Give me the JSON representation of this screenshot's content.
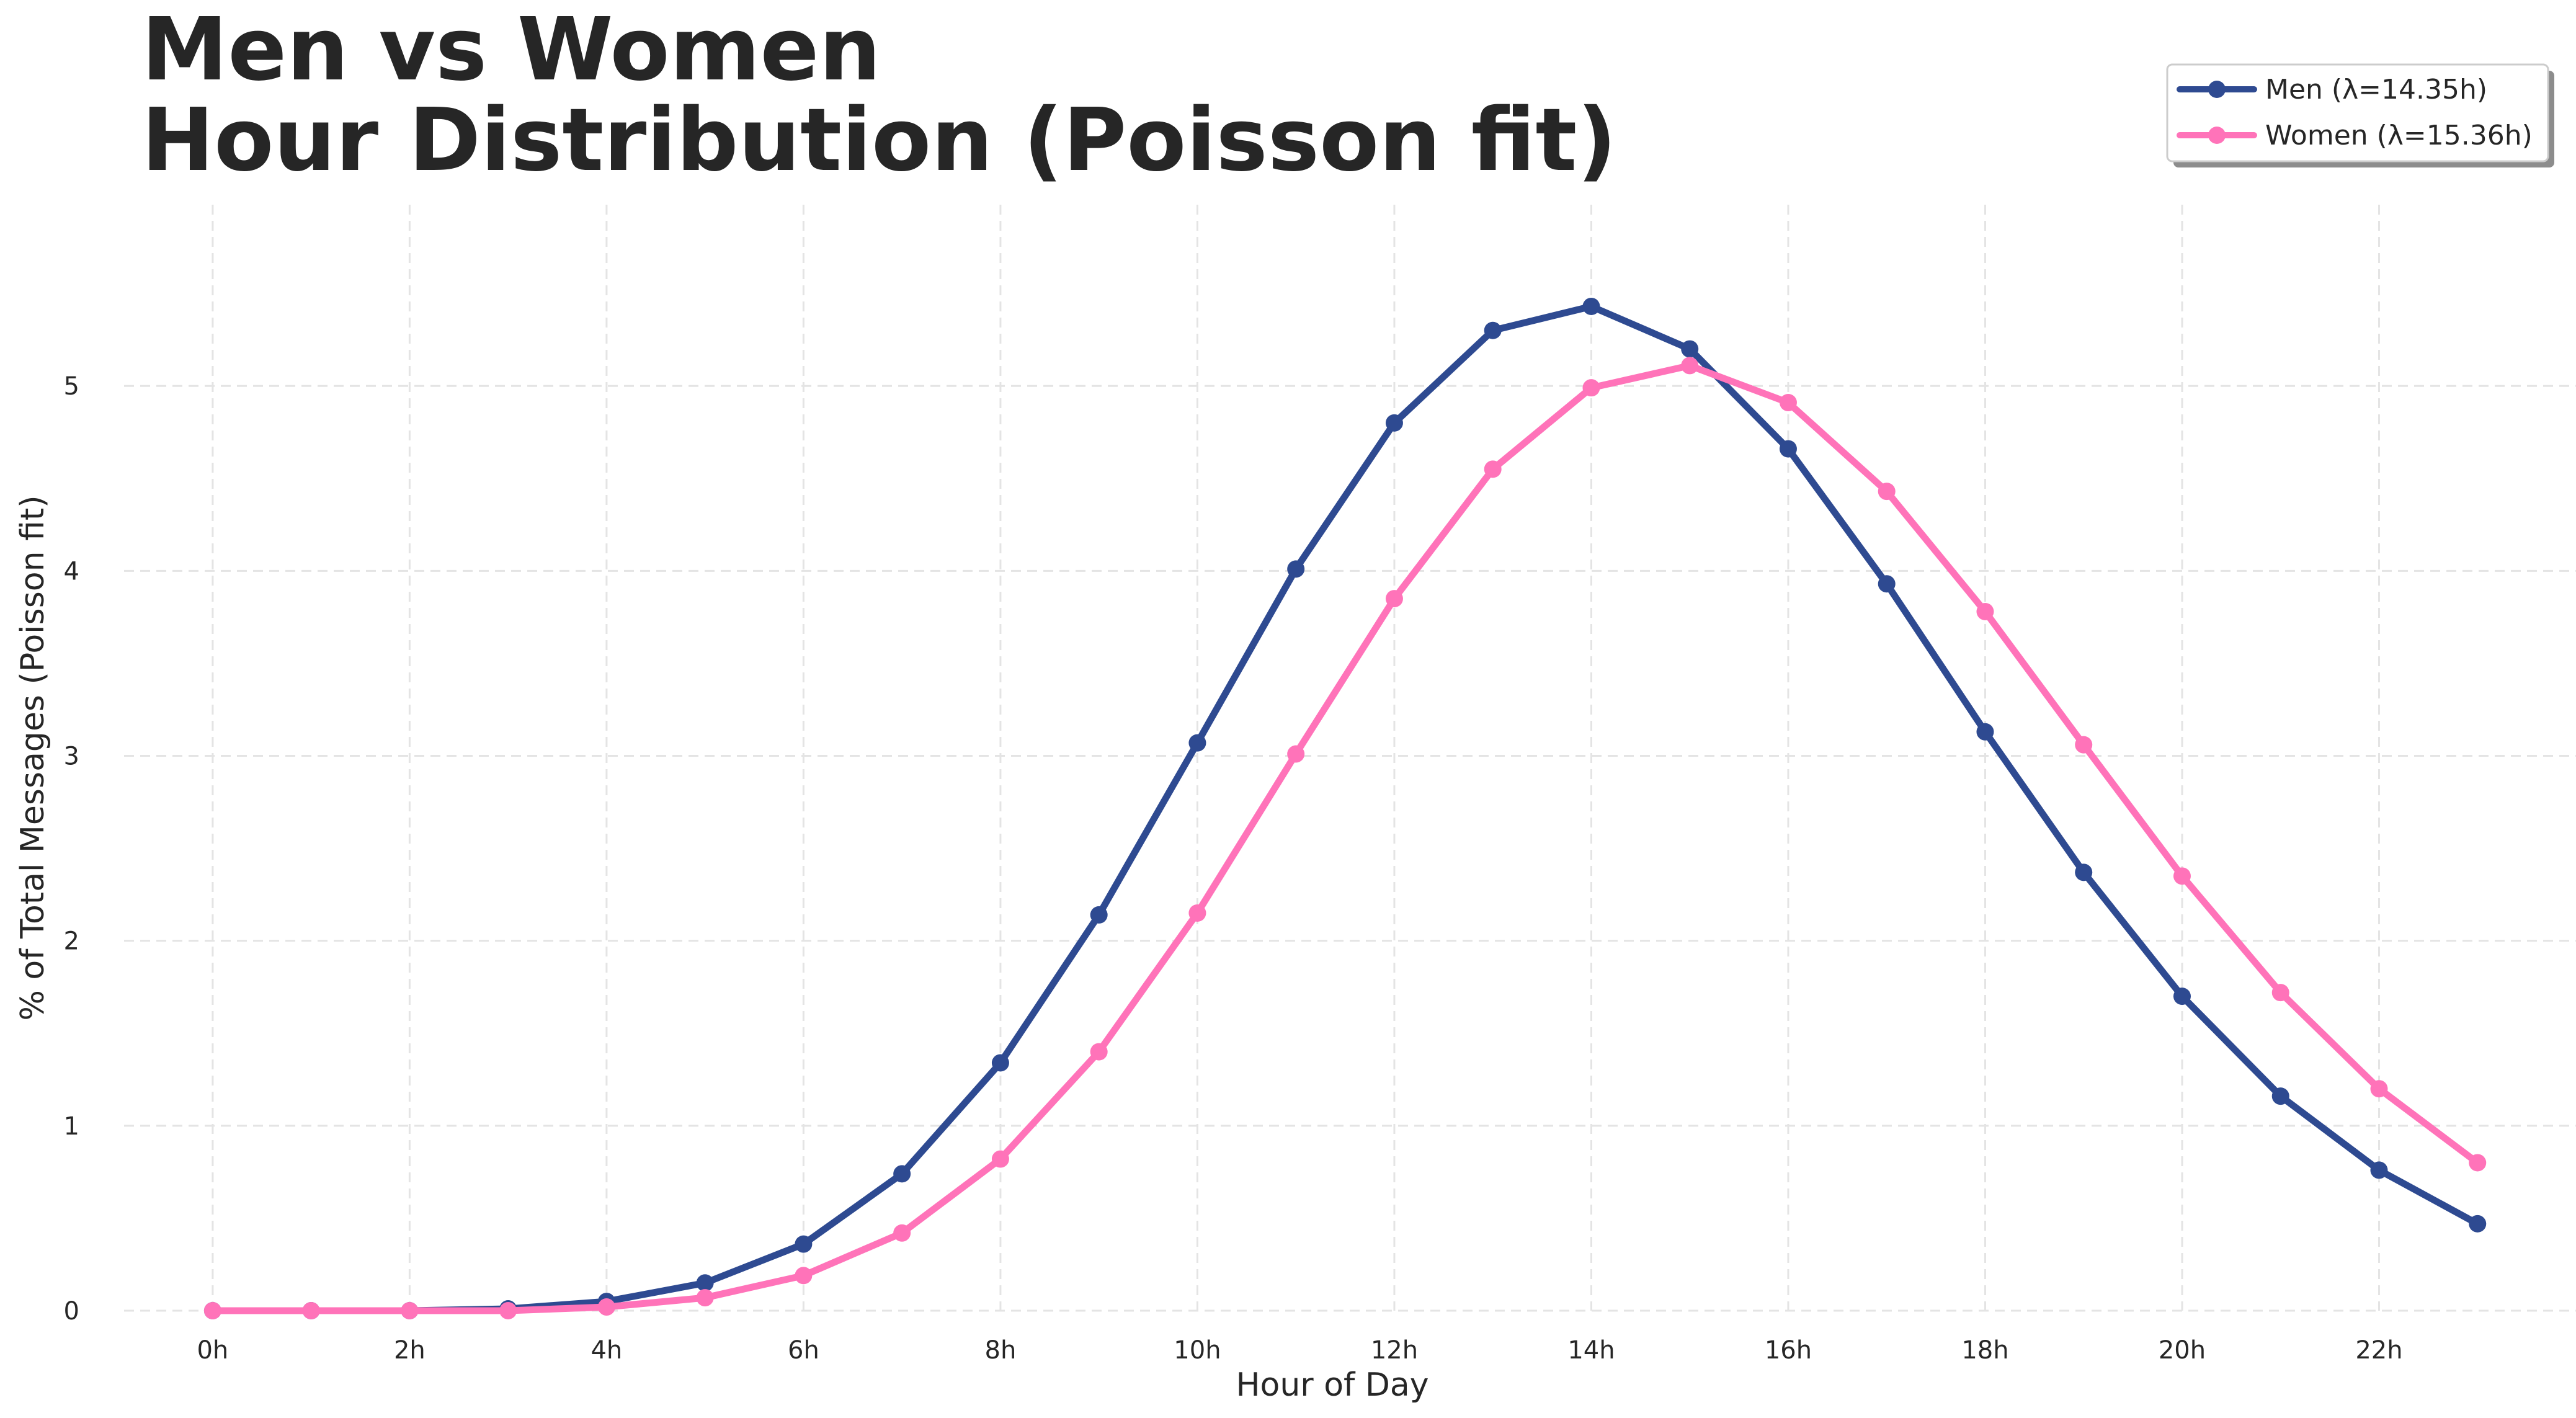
{
  "chart_data": {
    "type": "line",
    "title_lines": [
      "Men vs Women",
      "Hour Distribution (Poisson fit)"
    ],
    "xlabel": "Hour of Day",
    "ylabel": "% of Total Messages (Poisson fit)",
    "x": [
      0,
      1,
      2,
      3,
      4,
      5,
      6,
      7,
      8,
      9,
      10,
      11,
      12,
      13,
      14,
      15,
      16,
      17,
      18,
      19,
      20,
      21,
      22,
      23
    ],
    "x_ticks": [
      0,
      2,
      4,
      6,
      8,
      10,
      12,
      14,
      16,
      18,
      20,
      22
    ],
    "x_tick_labels": [
      "0h",
      "2h",
      "4h",
      "6h",
      "8h",
      "10h",
      "12h",
      "14h",
      "16h",
      "18h",
      "20h",
      "22h"
    ],
    "y_ticks": [
      0,
      1,
      2,
      3,
      4,
      5
    ],
    "y_tick_labels": [
      "0",
      "1",
      "2",
      "3",
      "4",
      "5"
    ],
    "xlim": [
      -0.9,
      24.0
    ],
    "ylim": [
      0,
      5.98
    ],
    "grid": true,
    "legend_position": "top-right",
    "series": [
      {
        "name": "Men (λ=14.35h)",
        "color": "#2e4a91",
        "values": [
          0.0,
          0.0,
          0.0,
          0.01,
          0.05,
          0.15,
          0.36,
          0.74,
          1.34,
          2.14,
          3.07,
          4.01,
          4.8,
          5.3,
          5.43,
          5.2,
          4.66,
          3.93,
          3.13,
          2.37,
          1.7,
          1.16,
          0.76,
          0.47
        ]
      },
      {
        "name": "Women (λ=15.36h)",
        "color": "#ff73b9",
        "values": [
          0.0,
          0.0,
          0.0,
          0.0,
          0.02,
          0.07,
          0.19,
          0.42,
          0.82,
          1.4,
          2.15,
          3.01,
          3.85,
          4.55,
          4.99,
          5.11,
          4.91,
          4.43,
          3.78,
          3.06,
          2.35,
          1.72,
          1.2,
          0.8
        ]
      }
    ]
  }
}
